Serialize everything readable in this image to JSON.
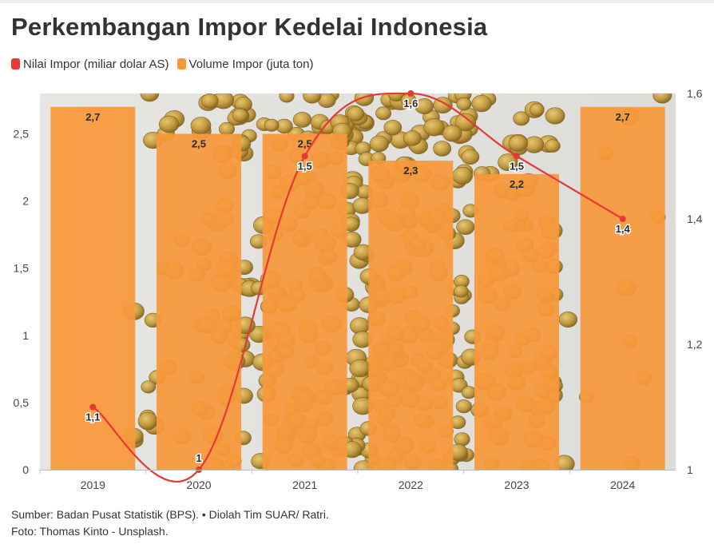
{
  "title": "Perkembangan Impor Kedelai Indonesia",
  "legend": [
    {
      "label": "Nilai Impor (miliar dolar AS)",
      "color": "#e53935"
    },
    {
      "label": "Volume Impor (juta ton)",
      "color": "#f7993b"
    }
  ],
  "chart_data": {
    "type": "bar",
    "categories": [
      "2019",
      "2020",
      "2021",
      "2022",
      "2023",
      "2024"
    ],
    "series": [
      {
        "name": "Volume Impor (juta ton)",
        "type": "bar",
        "axis": "left",
        "values": [
          2.7,
          2.5,
          2.5,
          2.3,
          2.2,
          2.7
        ],
        "labels": [
          "2,7",
          "2,5",
          "2,5",
          "2,3",
          "2,2",
          "2,7"
        ],
        "color": "#f7993b"
      },
      {
        "name": "Nilai Impor (miliar dolar AS)",
        "type": "line",
        "axis": "right",
        "values": [
          1.1,
          1.0,
          1.5,
          1.6,
          1.5,
          1.4
        ],
        "labels": [
          "1,1",
          "1",
          "1,5",
          "1,6",
          "1,5",
          "1,4"
        ],
        "color": "#e53935"
      }
    ],
    "y_left": {
      "range": [
        0,
        2.8
      ],
      "ticks": [
        0,
        0.5,
        1,
        1.5,
        2,
        2.5
      ],
      "tick_labels": [
        "0",
        "0,5",
        "1",
        "1,5",
        "2",
        "2,5"
      ]
    },
    "y_right": {
      "range": [
        1,
        1.6
      ],
      "ticks": [
        1,
        1.2,
        1.4,
        1.6
      ],
      "tick_labels": [
        "1",
        "1,2",
        "1,4",
        "1,6"
      ]
    },
    "background": "photo of soybeans",
    "grid": false,
    "legend_position": "top-left"
  },
  "footer": {
    "source": "Sumber: Badan Pusat Statistik (BPS). • Diolah Tim SUAR/ Ratri.",
    "photo": "Foto: Thomas Kinto - Unsplash."
  }
}
